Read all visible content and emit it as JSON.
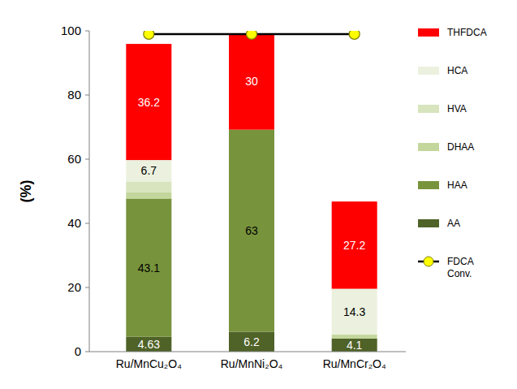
{
  "chart_data": {
    "type": "bar",
    "stacked": true,
    "data_labels": true,
    "legend": "right",
    "grid": false,
    "y_label": "(%)",
    "categories": [
      "Ru/MnCu₂O₄",
      "Ru/MnNi₂O₄",
      "Ru/MnCr₂O₄"
    ],
    "ylim": [
      0,
      100
    ],
    "yticks": [
      0,
      20,
      40,
      60,
      80,
      100
    ],
    "series": [
      {
        "name": "AA",
        "color": "#4f6228",
        "values": [
          4.63,
          6.2,
          4.1
        ],
        "value_labels": [
          "4.63",
          "6.2",
          "4.1"
        ]
      },
      {
        "name": "HAA",
        "color": "#77933c",
        "values": [
          43.1,
          63,
          0
        ],
        "value_labels": [
          "43.1",
          "63",
          null
        ]
      },
      {
        "name": "DHAA",
        "color": "#c3d69b",
        "values": [
          2,
          0,
          1.2
        ],
        "value_labels": [
          null,
          null,
          null
        ]
      },
      {
        "name": "HVA",
        "color": "#d7e4bd",
        "values": [
          3.3,
          0,
          0
        ],
        "value_labels": [
          null,
          null,
          null
        ]
      },
      {
        "name": "HCA",
        "color": "#ebf1de",
        "values": [
          6.7,
          0,
          14.3
        ],
        "value_labels": [
          "6.7",
          null,
          "14.3"
        ]
      },
      {
        "name": "THFDCA",
        "color": "#ff0000",
        "values": [
          36.2,
          30,
          27.2
        ],
        "value_labels": [
          "36.2",
          "30",
          "27.2"
        ]
      },
      {
        "name": "FDCA Conv.",
        "type": "line",
        "color": "#000000",
        "marker": "circle",
        "values": [
          99,
          99,
          99
        ]
      }
    ]
  }
}
